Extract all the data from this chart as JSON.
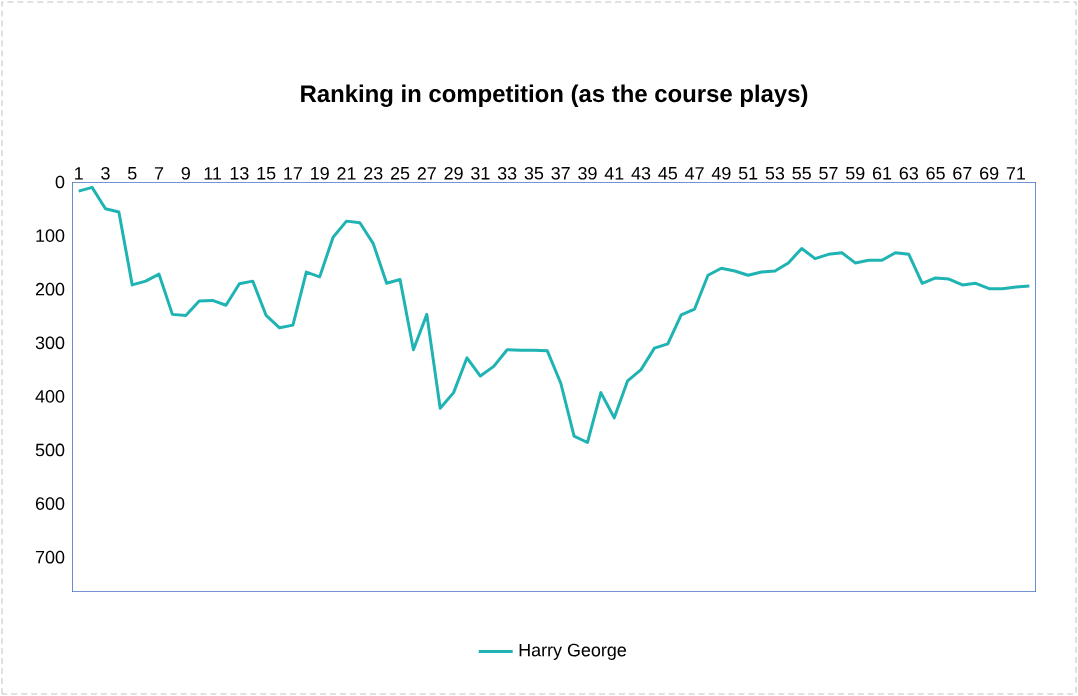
{
  "chart_data": {
    "type": "line",
    "title": "Ranking in competition (as the course plays)",
    "categories": [
      "1",
      null,
      "3",
      null,
      "5",
      null,
      "7",
      null,
      "9",
      null,
      "11",
      null,
      "13",
      null,
      "15",
      null,
      "17",
      null,
      "19",
      null,
      "21",
      null,
      "23",
      null,
      "25",
      null,
      "27",
      null,
      "29",
      null,
      "31",
      null,
      "33",
      null,
      "35",
      null,
      "37",
      null,
      "39",
      null,
      "41",
      null,
      "43",
      null,
      "45",
      null,
      "47",
      null,
      "49",
      null,
      "51",
      null,
      "53",
      null,
      "55",
      null,
      "57",
      null,
      "59",
      null,
      "61",
      null,
      "63",
      null,
      "65",
      null,
      "67",
      null,
      "69",
      null,
      "71",
      null
    ],
    "series": [
      {
        "name": "Harry George",
        "color": "#1fb3b3",
        "values": [
          17,
          10,
          50,
          56,
          192,
          185,
          172,
          247,
          249,
          222,
          221,
          230,
          190,
          185,
          249,
          272,
          267,
          168,
          177,
          103,
          73,
          76,
          115,
          189,
          182,
          313,
          247,
          422,
          393,
          328,
          362,
          344,
          313,
          314,
          314,
          315,
          375,
          474,
          486,
          393,
          440,
          371,
          350,
          310,
          302,
          248,
          237,
          174,
          161,
          166,
          174,
          168,
          166,
          151,
          124,
          143,
          135,
          132,
          151,
          146,
          146,
          132,
          135,
          189,
          179,
          181,
          192,
          189,
          199,
          199,
          196,
          194
        ]
      }
    ],
    "ylim": [
      765,
      0
    ],
    "yticks": [
      0,
      100,
      200,
      300,
      400,
      500,
      600,
      700
    ],
    "grid": false,
    "legend": "bottom",
    "marker": "none",
    "line_style": "solid"
  }
}
